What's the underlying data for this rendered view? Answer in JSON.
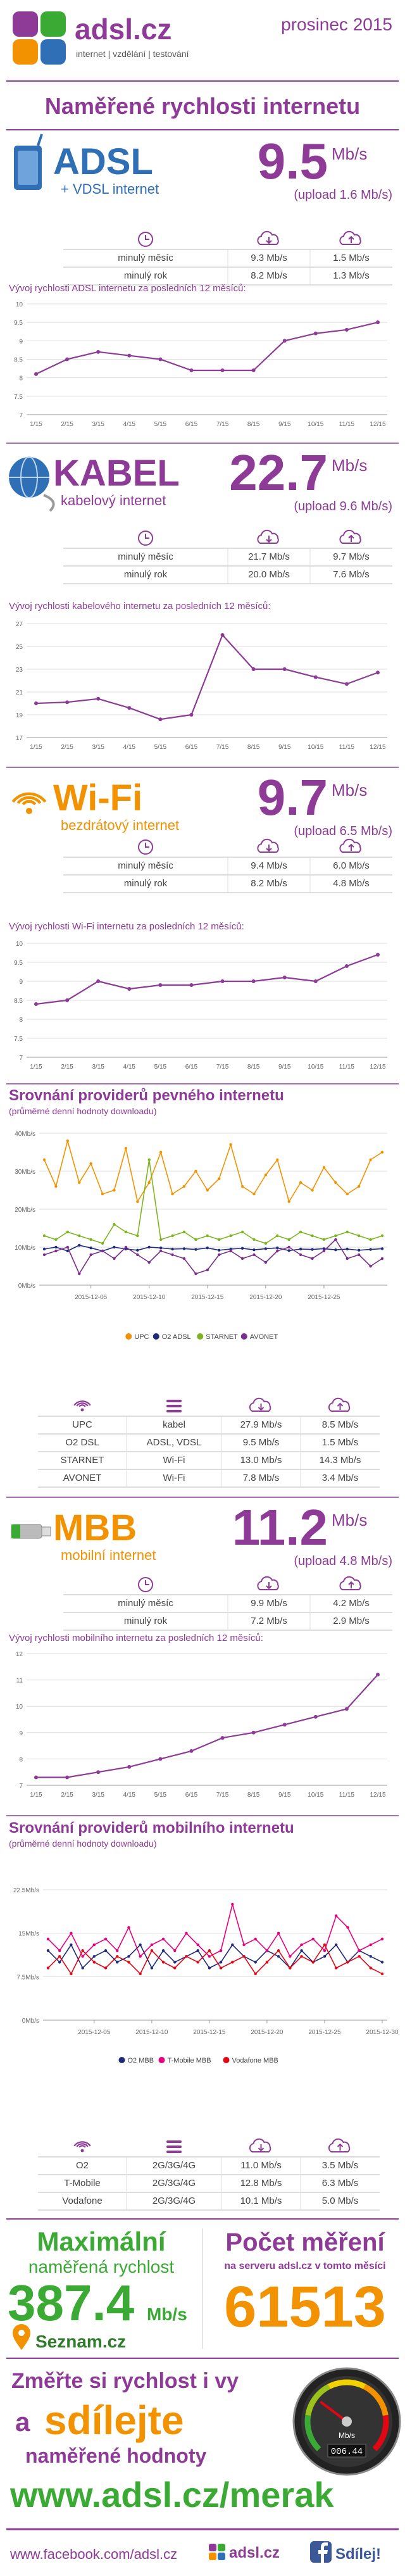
{
  "header": {
    "logo": "adsl.cz",
    "tagline": "internet | vzdělání | testování",
    "date": "prosinec 2015"
  },
  "title": "Naměřené rychlosti internetu",
  "sections": [
    {
      "name": "ADSL",
      "subtitle": "+ VDSL internet",
      "speed": "9.5",
      "unit": "Mb/s",
      "upload": "(upload 1.6 Mb/s)",
      "color": "#2f6fb5",
      "rows": [
        [
          "minulý měsíc",
          "9.3 Mb/s",
          "1.5 Mb/s"
        ],
        [
          "minulý rok",
          "8.2 Mb/s",
          "1.3 Mb/s"
        ]
      ]
    },
    {
      "name": "KABEL",
      "subtitle": "kabelový internet",
      "speed": "22.7",
      "unit": "Mb/s",
      "upload": "(upload 9.6 Mb/s)",
      "color": "#8e3b97",
      "rows": [
        [
          "minulý měsíc",
          "21.7 Mb/s",
          "9.7 Mb/s"
        ],
        [
          "minulý rok",
          "20.0 Mb/s",
          "7.6 Mb/s"
        ]
      ]
    },
    {
      "name": "Wi-Fi",
      "subtitle": "bezdrátový internet",
      "speed": "9.7",
      "unit": "Mb/s",
      "upload": "(upload 6.5 Mb/s)",
      "color": "#f39200",
      "rows": [
        [
          "minulý měsíc",
          "9.4 Mb/s",
          "6.0 Mb/s"
        ],
        [
          "minulý rok",
          "8.2 Mb/s",
          "4.8 Mb/s"
        ]
      ]
    },
    {
      "name": "MBB",
      "subtitle": "mobilní internet",
      "speed": "11.2",
      "unit": "Mb/s",
      "upload": "(upload 4.8 Mb/s)",
      "color": "#f39200",
      "rows": [
        [
          "minulý měsíc",
          "9.9 Mb/s",
          "4.2 Mb/s"
        ],
        [
          "minulý rok",
          "7.2 Mb/s",
          "2.9 Mb/s"
        ]
      ]
    }
  ],
  "chart_data": [
    {
      "type": "line",
      "title": "Vývoj rychlosti ADSL internetu za posledních 12 měsíců:",
      "categories": [
        "1/15",
        "2/15",
        "3/15",
        "4/15",
        "5/15",
        "6/15",
        "7/15",
        "8/15",
        "9/15",
        "10/15",
        "11/15",
        "12/15"
      ],
      "values": [
        8.1,
        8.5,
        8.7,
        8.6,
        8.5,
        8.2,
        8.2,
        8.2,
        9.0,
        9.2,
        9.3,
        9.5
      ],
      "color": "#8e3b97",
      "ylim": [
        7,
        10
      ],
      "yticks": [
        7,
        7.5,
        8,
        8.5,
        9,
        9.5,
        10
      ],
      "grid": true
    },
    {
      "type": "line",
      "title": "Vývoj rychlosti kabelového internetu za posledních 12 měsíců:",
      "categories": [
        "1/15",
        "2/15",
        "3/15",
        "4/15",
        "5/15",
        "6/15",
        "7/15",
        "8/15",
        "9/15",
        "10/15",
        "11/15",
        "12/15"
      ],
      "values": [
        20.0,
        20.1,
        20.4,
        19.6,
        18.6,
        19.0,
        26.0,
        23.0,
        23.0,
        22.3,
        21.7,
        22.7
      ],
      "color": "#8e3b97",
      "ylim": [
        17,
        27
      ],
      "yticks": [
        17,
        19,
        21,
        23,
        25,
        27
      ],
      "grid": true
    },
    {
      "type": "line",
      "title": "Vývoj rychlosti Wi-Fi internetu za posledních 12 měsíců:",
      "categories": [
        "1/15",
        "2/15",
        "3/15",
        "4/15",
        "5/15",
        "6/15",
        "7/15",
        "8/15",
        "9/15",
        "10/15",
        "11/15",
        "12/15"
      ],
      "values": [
        8.4,
        8.5,
        9.0,
        8.8,
        8.9,
        8.9,
        9.0,
        9.0,
        9.1,
        9.0,
        9.4,
        9.7
      ],
      "color": "#8e3b97",
      "ylim": [
        7,
        10
      ],
      "yticks": [
        7,
        7.5,
        8,
        8.5,
        9,
        9.5,
        10
      ],
      "grid": true
    },
    {
      "type": "line",
      "title": "Srovnání providerů pevného internetu",
      "subtitle": "(průměrné denní hodnoty downloadu)",
      "x": [
        "2015-12-01",
        "2015-12-02",
        "2015-12-03",
        "2015-12-04",
        "2015-12-05",
        "2015-12-06",
        "2015-12-07",
        "2015-12-08",
        "2015-12-09",
        "2015-12-10",
        "2015-12-11",
        "2015-12-12",
        "2015-12-13",
        "2015-12-14",
        "2015-12-15",
        "2015-12-16",
        "2015-12-17",
        "2015-12-18",
        "2015-12-19",
        "2015-12-20",
        "2015-12-21",
        "2015-12-22",
        "2015-12-23",
        "2015-12-24",
        "2015-12-25",
        "2015-12-26",
        "2015-12-27",
        "2015-12-28",
        "2015-12-29",
        "2015-12-30"
      ],
      "xlim": [
        "2015-12-01",
        "2015-12-30"
      ],
      "xticks": [
        "2015-12-05",
        "2015-12-10",
        "2015-12-15",
        "2015-12-20",
        "2015-12-25"
      ],
      "ylim": [
        0,
        40
      ],
      "yticks": [
        {
          "value": 0,
          "label": "0Mb/s"
        },
        {
          "value": 10,
          "label": "10Mb/s"
        },
        {
          "value": 20,
          "label": "20Mb/s"
        },
        {
          "value": 30,
          "label": "30Mb/s"
        },
        {
          "value": 40,
          "label": "40Mb/s"
        }
      ],
      "grid": true,
      "legend": "bottom",
      "series": [
        {
          "name": "UPC",
          "color": "#f39200",
          "values": [
            33,
            26,
            38,
            27,
            32,
            24,
            25,
            36,
            22,
            27,
            35,
            24,
            26,
            30,
            25,
            28,
            37,
            26,
            24,
            29,
            33,
            22,
            27,
            25,
            31,
            27,
            24,
            26,
            33,
            35
          ]
        },
        {
          "name": "O2 ADSL",
          "color": "#1f2a7a",
          "values": [
            9.5,
            10,
            9,
            10.5,
            9.8,
            9,
            10,
            9.5,
            9.2,
            10,
            9.8,
            9.5,
            9.6,
            9.4,
            9.8,
            9.2,
            9.5,
            9.7,
            9.3,
            9.6,
            9.8,
            9.1,
            9.5,
            9.4,
            9.6,
            9.3,
            9.5,
            9.2,
            9.4,
            9.6
          ]
        },
        {
          "name": "STARNET",
          "color": "#7ab51d",
          "values": [
            13,
            12,
            14,
            13,
            12,
            11,
            16,
            14,
            13,
            33,
            12,
            13,
            14,
            12,
            13,
            12,
            13,
            14,
            12,
            11,
            13,
            12,
            14,
            13,
            12,
            13,
            14,
            13,
            12,
            13
          ]
        },
        {
          "name": "AVONET",
          "color": "#7b2d8b",
          "values": [
            8,
            9,
            10,
            3,
            8,
            9,
            7,
            10,
            8,
            6,
            9,
            8,
            7,
            3,
            4,
            8,
            9,
            7,
            8,
            6,
            9,
            10,
            8,
            7,
            9,
            12,
            7,
            8,
            5,
            7
          ]
        }
      ]
    },
    {
      "type": "line",
      "title": "Vývoj rychlosti mobilního internetu za posledních 12 měsíců:",
      "categories": [
        "1/15",
        "2/15",
        "3/15",
        "4/15",
        "5/15",
        "6/15",
        "7/15",
        "8/15",
        "9/15",
        "10/15",
        "11/15",
        "12/15"
      ],
      "values": [
        7.3,
        7.3,
        7.5,
        7.7,
        8.0,
        8.3,
        8.8,
        9.0,
        9.3,
        9.6,
        9.9,
        11.2
      ],
      "color": "#8e3b97",
      "ylim": [
        7,
        12
      ],
      "yticks": [
        7,
        8,
        9,
        10,
        11,
        12
      ],
      "grid": true
    },
    {
      "type": "line",
      "title": "Srovnání providerů mobilního internetu",
      "subtitle": "(průměrné denní hodnoty downloadu)",
      "x": [
        "2015-12-01",
        "2015-12-02",
        "2015-12-03",
        "2015-12-04",
        "2015-12-05",
        "2015-12-06",
        "2015-12-07",
        "2015-12-08",
        "2015-12-09",
        "2015-12-10",
        "2015-12-11",
        "2015-12-12",
        "2015-12-13",
        "2015-12-14",
        "2015-12-15",
        "2015-12-16",
        "2015-12-17",
        "2015-12-18",
        "2015-12-19",
        "2015-12-20",
        "2015-12-21",
        "2015-12-22",
        "2015-12-23",
        "2015-12-24",
        "2015-12-25",
        "2015-12-26",
        "2015-12-27",
        "2015-12-28",
        "2015-12-29",
        "2015-12-30"
      ],
      "xlim": [
        "2015-12-01",
        "2015-12-30"
      ],
      "xticks": [
        "2015-12-05",
        "2015-12-10",
        "2015-12-15",
        "2015-12-20",
        "2015-12-25",
        "2015-12-30"
      ],
      "ylim": [
        0,
        22.5
      ],
      "yticks": [
        {
          "value": 0,
          "label": "0Mb/s"
        },
        {
          "value": 7.5,
          "label": "7.5Mb/s"
        },
        {
          "value": 15,
          "label": "15Mb/s"
        },
        {
          "value": 22.5,
          "label": "22.5Mb/s"
        }
      ],
      "grid": true,
      "legend": "bottom",
      "series": [
        {
          "name": "O2 MBB",
          "color": "#1f2a7a",
          "values": [
            12,
            10,
            13,
            9,
            11,
            12,
            10,
            11,
            13,
            9,
            12,
            10,
            11,
            12,
            9,
            10,
            13,
            11,
            10,
            12,
            11,
            9,
            12,
            10,
            11,
            13,
            10,
            12,
            11,
            10
          ]
        },
        {
          "name": "T-Mobile MBB",
          "color": "#e6007e",
          "values": [
            14,
            12,
            15,
            11,
            13,
            14,
            12,
            16,
            11,
            13,
            14,
            12,
            15,
            13,
            11,
            12,
            20,
            13,
            14,
            12,
            15,
            11,
            13,
            14,
            12,
            18,
            16,
            12,
            13,
            14
          ]
        },
        {
          "name": "Vodafone MBB",
          "color": "#e30613",
          "values": [
            9,
            11,
            8,
            12,
            10,
            9,
            11,
            10,
            8,
            12,
            10,
            9,
            11,
            10,
            12,
            9,
            10,
            11,
            8,
            10,
            12,
            9,
            11,
            10,
            13,
            9,
            10,
            11,
            9,
            8
          ]
        }
      ]
    }
  ],
  "provider_tables": [
    {
      "rows": [
        [
          "UPC",
          "kabel",
          "27.9 Mb/s",
          "8.5 Mb/s"
        ],
        [
          "O2 DSL",
          "ADSL, VDSL",
          "9.5 Mb/s",
          "1.5 Mb/s"
        ],
        [
          "STARNET",
          "Wi-Fi",
          "13.0 Mb/s",
          "14.3 Mb/s"
        ],
        [
          "AVONET",
          "Wi-Fi",
          "7.8 Mb/s",
          "3.4 Mb/s"
        ]
      ]
    },
    {
      "rows": [
        [
          "O2",
          "2G/3G/4G",
          "11.0 Mb/s",
          "3.5 Mb/s"
        ],
        [
          "T-Mobile",
          "2G/3G/4G",
          "12.8 Mb/s",
          "6.3 Mb/s"
        ],
        [
          "Vodafone",
          "2G/3G/4G",
          "10.1 Mb/s",
          "5.0 Mb/s"
        ]
      ]
    }
  ],
  "max_speed": {
    "title": "Maximální",
    "subtitle": "naměřená rychlost",
    "value": "387.4",
    "unit": "Mb/s",
    "provider": "Seznam.cz"
  },
  "measurements": {
    "title": "Počet měření",
    "subtitle": "na serveru adsl.cz v tomto měsíci",
    "value": "61513"
  },
  "share": {
    "line1": "Změřte si rychlost i vy",
    "line2a": "a",
    "line2b": "sdílejte",
    "line3": "naměřené hodnoty",
    "url": "www.adsl.cz/merak",
    "gauge_unit": "Mb/s",
    "gauge_reading": "006.44"
  },
  "footer": {
    "facebook": "www.facebook.com/adsl.cz",
    "logo": "adsl.cz",
    "share": "Sdílej!"
  }
}
